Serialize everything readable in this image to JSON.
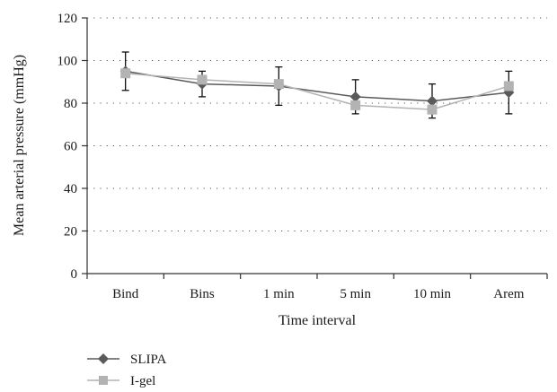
{
  "chart_data": {
    "type": "line",
    "xlabel": "Time interval",
    "ylabel": "Mean arterial pressure (mmHg)",
    "categories": [
      "Bind",
      "Bins",
      "1 min",
      "5 min",
      "10 min",
      "Arem"
    ],
    "ylim": [
      0,
      120
    ],
    "yticks": [
      "0",
      "20",
      "40",
      "60",
      "80",
      "100",
      "120"
    ],
    "grid": "horizontal dotted",
    "legend_position": "bottom-left",
    "series": [
      {
        "name": "SLIPA",
        "marker": "diamond",
        "color": "#5a5a5a",
        "values": [
          95,
          89,
          88,
          83,
          81,
          85
        ],
        "error": [
          9,
          6,
          9,
          8,
          8,
          10
        ]
      },
      {
        "name": "I-gel",
        "marker": "square",
        "color": "#b3b3b3",
        "values": [
          94,
          91,
          89,
          79,
          77,
          88
        ],
        "error": null
      }
    ]
  }
}
